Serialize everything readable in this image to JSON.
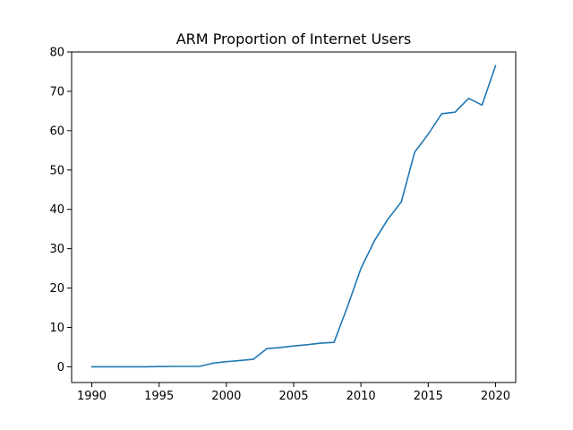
{
  "chart_data": {
    "type": "line",
    "title": "ARM Proportion of Internet Users",
    "xlabel": "",
    "ylabel": "",
    "xlim": [
      1988.5,
      2021.5
    ],
    "ylim": [
      -4,
      80
    ],
    "xticks": [
      1990,
      1995,
      2000,
      2005,
      2010,
      2015,
      2020
    ],
    "yticks": [
      0,
      10,
      20,
      30,
      40,
      50,
      60,
      70,
      80
    ],
    "grid": false,
    "line_color": "#1f77b4",
    "series": [
      {
        "x": [
          1990,
          1991,
          1992,
          1993,
          1994,
          1995,
          1996,
          1997,
          1998,
          1999,
          2000,
          2001,
          2002,
          2003,
          2004,
          2005,
          2006,
          2007,
          2008,
          2009,
          2010,
          2011,
          2012,
          2013,
          2014,
          2015,
          2016,
          2017,
          2018,
          2019,
          2020
        ],
        "values": [
          0,
          0,
          0,
          0,
          0,
          0.05,
          0.1,
          0.1,
          0.1,
          0.9,
          1.3,
          1.6,
          1.9,
          4.6,
          4.9,
          5.3,
          5.6,
          6.0,
          6.2,
          15.3,
          25.0,
          32.0,
          37.5,
          41.9,
          54.6,
          59.1,
          64.3,
          64.7,
          68.2,
          66.5,
          76.5
        ]
      }
    ]
  }
}
